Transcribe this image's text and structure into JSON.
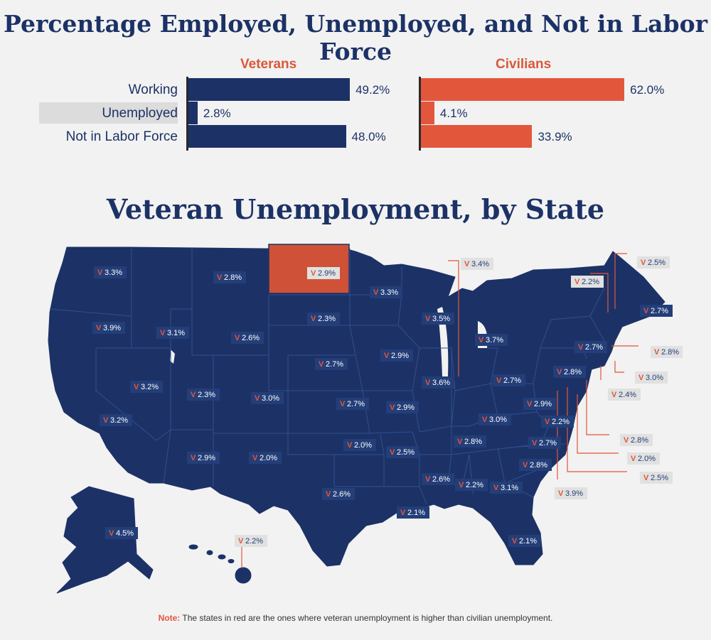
{
  "header": {
    "title": "Percentage Employed, Unemployed, and Not in Labor Force"
  },
  "chart_data": [
    {
      "type": "bar",
      "orientation": "horizontal",
      "categories": [
        "Working",
        "Unemployed",
        "Not in Labor Force"
      ],
      "series": [
        {
          "name": "Veterans",
          "values": [
            49.2,
            2.8,
            48.0
          ],
          "labels": [
            "49.2%",
            "2.8%",
            "48.0%"
          ],
          "color": "#1c3266"
        },
        {
          "name": "Civilians",
          "values": [
            62.0,
            4.1,
            33.9
          ],
          "labels": [
            "62.0%",
            "4.1%",
            "33.9%"
          ],
          "color": "#e2563b"
        }
      ],
      "xlim": [
        0,
        65
      ],
      "highlighted_category": "Unemployed",
      "grid": false
    },
    {
      "type": "map",
      "title": "Veteran Unemployment, by State",
      "value_prefix": "V",
      "colors": {
        "base": "#1c3266",
        "highlight": "#cf5238",
        "tag": "#233e78",
        "tag_letter": "#e2563b",
        "callout_tag": "#e1e1e1"
      },
      "states": [
        {
          "state": "WA",
          "label": "3.3%",
          "value": 3.3
        },
        {
          "state": "OR",
          "label": "3.9%",
          "value": 3.9
        },
        {
          "state": "CA",
          "label": "3.2%",
          "value": 3.2
        },
        {
          "state": "NV",
          "label": "3.2%",
          "value": 3.2
        },
        {
          "state": "ID",
          "label": "3.1%",
          "value": 3.1
        },
        {
          "state": "MT",
          "label": "2.8%",
          "value": 2.8
        },
        {
          "state": "WY",
          "label": "2.6%",
          "value": 2.6
        },
        {
          "state": "UT",
          "label": "2.3%",
          "value": 2.3
        },
        {
          "state": "AZ",
          "label": "2.9%",
          "value": 2.9
        },
        {
          "state": "CO",
          "label": "3.0%",
          "value": 3.0
        },
        {
          "state": "NM",
          "label": "2.0%",
          "value": 2.0
        },
        {
          "state": "ND",
          "label": "2.9%",
          "value": 2.9,
          "highlight": true
        },
        {
          "state": "SD",
          "label": "2.3%",
          "value": 2.3
        },
        {
          "state": "NE",
          "label": "2.7%",
          "value": 2.7
        },
        {
          "state": "KS",
          "label": "2.7%",
          "value": 2.7
        },
        {
          "state": "OK",
          "label": "2.0%",
          "value": 2.0
        },
        {
          "state": "TX",
          "label": "2.6%",
          "value": 2.6
        },
        {
          "state": "MN",
          "label": "3.3%",
          "value": 3.3
        },
        {
          "state": "IA",
          "label": "2.9%",
          "value": 2.9
        },
        {
          "state": "MO",
          "label": "2.9%",
          "value": 2.9
        },
        {
          "state": "AR",
          "label": "2.5%",
          "value": 2.5
        },
        {
          "state": "LA",
          "label": "2.1%",
          "value": 2.1
        },
        {
          "state": "WI",
          "label": "3.5%",
          "value": 3.5
        },
        {
          "state": "IL",
          "label": "3.6%",
          "value": 3.6
        },
        {
          "state": "MI",
          "label": "3.7%",
          "value": 3.7
        },
        {
          "state": "IN",
          "label": "3.4%",
          "value": 3.4
        },
        {
          "state": "OH",
          "label": "2.7%",
          "value": 2.7
        },
        {
          "state": "KY",
          "label": "3.0%",
          "value": 3.0
        },
        {
          "state": "TN",
          "label": "2.8%",
          "value": 2.8
        },
        {
          "state": "MS",
          "label": "2.6%",
          "value": 2.6
        },
        {
          "state": "AL",
          "label": "2.2%",
          "value": 2.2
        },
        {
          "state": "GA",
          "label": "3.1%",
          "value": 3.1
        },
        {
          "state": "FL",
          "label": "2.1%",
          "value": 2.1
        },
        {
          "state": "SC",
          "label": "2.8%",
          "value": 2.8
        },
        {
          "state": "NC",
          "label": "2.7%",
          "value": 2.7
        },
        {
          "state": "VA",
          "label": "2.2%",
          "value": 2.2
        },
        {
          "state": "WV",
          "label": "2.9%",
          "value": 2.9
        },
        {
          "state": "PA",
          "label": "2.8%",
          "value": 2.8
        },
        {
          "state": "NY",
          "label": "2.7%",
          "value": 2.7
        },
        {
          "state": "VT",
          "label": "2.2%",
          "value": 2.2
        },
        {
          "state": "NH",
          "label": "2.5%",
          "value": 2.5
        },
        {
          "state": "ME",
          "label": "2.7%",
          "value": 2.7
        },
        {
          "state": "MA",
          "label": "2.8%",
          "value": 2.8
        },
        {
          "state": "RI",
          "label": "3.0%",
          "value": 3.0
        },
        {
          "state": "CT",
          "label": "2.4%",
          "value": 2.4
        },
        {
          "state": "NJ",
          "label": "2.8%",
          "value": 2.8
        },
        {
          "state": "DE",
          "label": "2.0%",
          "value": 2.0
        },
        {
          "state": "MD",
          "label": "2.5%",
          "value": 2.5
        },
        {
          "state": "DC",
          "label": "3.9%",
          "value": 3.9
        },
        {
          "state": "AK",
          "label": "4.5%",
          "value": 4.5
        },
        {
          "state": "HI",
          "label": "2.2%",
          "value": 2.2
        }
      ]
    }
  ],
  "note": {
    "label": "Note:",
    "text": "The states in red are the ones where veteran unemployment is higher than civilian unemployment."
  }
}
